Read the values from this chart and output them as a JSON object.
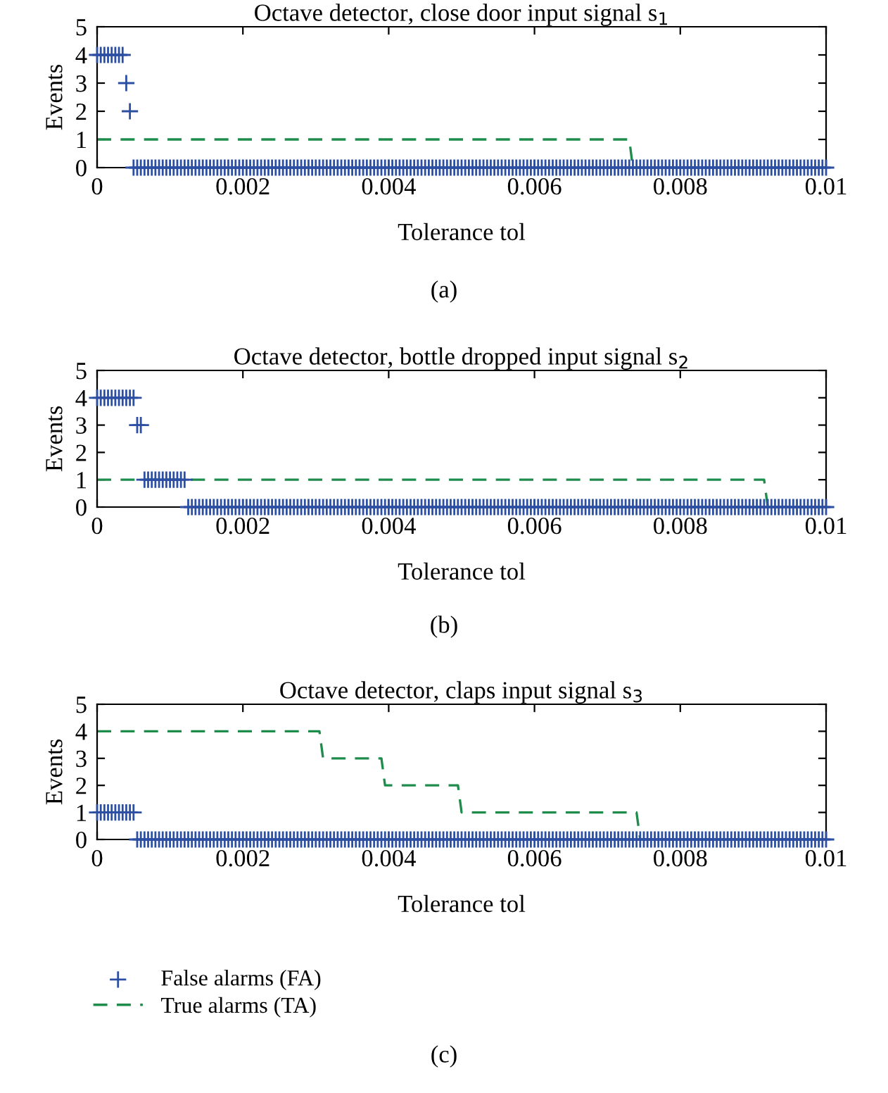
{
  "chart_data": [
    {
      "type": "scatter",
      "title": "Octave detector, close door input signal s$_{1}$",
      "xlabel": "Tolerance tol",
      "ylabel": "Events",
      "annotations": [
        "(a)"
      ],
      "xlim": [
        0,
        0.01
      ],
      "ylim": [
        0,
        5
      ],
      "xticks": [
        0,
        0.002,
        0.004,
        0.006,
        0.008,
        0.01
      ],
      "yticks": [
        0,
        1,
        2,
        3,
        4,
        5
      ],
      "x": [
        0,
        5e-05,
        0.0001,
        0.00015,
        0.0002,
        0.00025,
        0.0003,
        0.00035,
        0.0004,
        0.00045,
        0.0005,
        0.00055,
        0.0006,
        0.00065,
        0.0007,
        0.00075,
        0.0008,
        0.00085,
        0.0009,
        0.00095,
        0.001,
        0.00105,
        0.0011,
        0.00115,
        0.0012,
        0.00125,
        0.0013,
        0.00135,
        0.0014,
        0.00145,
        0.0015,
        0.00155,
        0.0016,
        0.00165,
        0.0017,
        0.00175,
        0.0018,
        0.00185,
        0.0019,
        0.00195,
        0.002,
        0.00205,
        0.0021,
        0.00215,
        0.0022,
        0.00225,
        0.0023,
        0.00235,
        0.0024,
        0.00245,
        0.0025,
        0.00255,
        0.0026,
        0.00265,
        0.0027,
        0.00275,
        0.0028,
        0.00285,
        0.0029,
        0.00295,
        0.003,
        0.00305,
        0.0031,
        0.00315,
        0.0032,
        0.00325,
        0.0033,
        0.00335,
        0.0034,
        0.00345,
        0.0035,
        0.00355,
        0.0036,
        0.00365,
        0.0037,
        0.00375,
        0.0038,
        0.00385,
        0.0039,
        0.00395,
        0.004,
        0.00405,
        0.0041,
        0.00415,
        0.0042,
        0.00425,
        0.0043,
        0.00435,
        0.0044,
        0.00445,
        0.0045,
        0.00455,
        0.0046,
        0.00465,
        0.0047,
        0.00475,
        0.0048,
        0.00485,
        0.0049,
        0.00495,
        0.005,
        0.00505,
        0.0051,
        0.00515,
        0.0052,
        0.00525,
        0.0053,
        0.00535,
        0.0054,
        0.00545,
        0.0055,
        0.00555,
        0.0056,
        0.00565,
        0.0057,
        0.00575,
        0.0058,
        0.00585,
        0.0059,
        0.00595,
        0.006,
        0.00605,
        0.0061,
        0.00615,
        0.0062,
        0.00625,
        0.0063,
        0.00635,
        0.0064,
        0.00645,
        0.0065,
        0.00655,
        0.0066,
        0.00665,
        0.0067,
        0.00675,
        0.0068,
        0.00685,
        0.0069,
        0.00695,
        0.007,
        0.00705,
        0.0071,
        0.00715,
        0.0072,
        0.00725,
        0.0073,
        0.00735,
        0.0074,
        0.00745,
        0.0075,
        0.00755,
        0.0076,
        0.00765,
        0.0077,
        0.00775,
        0.0078,
        0.00785,
        0.0079,
        0.00795,
        0.008,
        0.00805,
        0.0081,
        0.00815,
        0.0082,
        0.00825,
        0.0083,
        0.00835,
        0.0084,
        0.00845,
        0.0085,
        0.00855,
        0.0086,
        0.00865,
        0.0087,
        0.00875,
        0.0088,
        0.00885,
        0.0089,
        0.00895,
        0.009,
        0.00905,
        0.0091,
        0.00915,
        0.0092,
        0.00925,
        0.0093,
        0.00935,
        0.0094,
        0.00945,
        0.0095,
        0.00955,
        0.0096,
        0.00965,
        0.0097,
        0.00975,
        0.0098,
        0.00985,
        0.0099,
        0.00995,
        0.01
      ],
      "series": [
        {
          "marker": "cross",
          "color": "#2c4fa3",
          "values": [
            4,
            4,
            4,
            4,
            4,
            4,
            4,
            4,
            3,
            2,
            0,
            0,
            0,
            0,
            0,
            0,
            0,
            0,
            0,
            0,
            0,
            0,
            0,
            0,
            0,
            0,
            0,
            0,
            0,
            0,
            0,
            0,
            0,
            0,
            0,
            0,
            0,
            0,
            0,
            0,
            0,
            0,
            0,
            0,
            0,
            0,
            0,
            0,
            0,
            0,
            0,
            0,
            0,
            0,
            0,
            0,
            0,
            0,
            0,
            0,
            0,
            0,
            0,
            0,
            0,
            0,
            0,
            0,
            0,
            0,
            0,
            0,
            0,
            0,
            0,
            0,
            0,
            0,
            0,
            0,
            0,
            0,
            0,
            0,
            0,
            0,
            0,
            0,
            0,
            0,
            0,
            0,
            0,
            0,
            0,
            0,
            0,
            0,
            0,
            0,
            0,
            0,
            0,
            0,
            0,
            0,
            0,
            0,
            0,
            0,
            0,
            0,
            0,
            0,
            0,
            0,
            0,
            0,
            0,
            0,
            0,
            0,
            0,
            0,
            0,
            0,
            0,
            0,
            0,
            0,
            0,
            0,
            0,
            0,
            0,
            0,
            0,
            0,
            0,
            0,
            0,
            0,
            0,
            0,
            0,
            0,
            0,
            0,
            0,
            0,
            0,
            0,
            0,
            0,
            0,
            0,
            0,
            0,
            0,
            0,
            0,
            0,
            0,
            0,
            0,
            0,
            0,
            0,
            0,
            0,
            0,
            0,
            0,
            0,
            0,
            0,
            0,
            0,
            0,
            0,
            0,
            0,
            0,
            0,
            0,
            0,
            0,
            0,
            0,
            0,
            0,
            0,
            0,
            0,
            0,
            0,
            0,
            0,
            0,
            0,
            0
          ]
        },
        {
          "type": "line",
          "line_style": "dashed",
          "marker": "none",
          "color": "#1e8c4b",
          "x": [
            0,
            0.0073,
            0.00735,
            0.01
          ],
          "values": [
            1,
            1,
            0,
            0
          ]
        }
      ]
    },
    {
      "type": "scatter",
      "title": "Octave detector, bottle dropped input signal s$_{2}$",
      "xlabel": "Tolerance tol",
      "ylabel": "Events",
      "annotations": [
        "(b)"
      ],
      "xlim": [
        0,
        0.01
      ],
      "ylim": [
        0,
        5
      ],
      "xticks": [
        0,
        0.002,
        0.004,
        0.006,
        0.008,
        0.01
      ],
      "yticks": [
        0,
        1,
        2,
        3,
        4,
        5
      ],
      "x": [
        0,
        5e-05,
        0.0001,
        0.00015,
        0.0002,
        0.00025,
        0.0003,
        0.00035,
        0.0004,
        0.00045,
        0.0005,
        0.00055,
        0.0006,
        0.00065,
        0.0007,
        0.00075,
        0.0008,
        0.00085,
        0.0009,
        0.00095,
        0.001,
        0.00105,
        0.0011,
        0.00115,
        0.0012,
        0.00125,
        0.0013,
        0.00135,
        0.0014,
        0.00145,
        0.0015,
        0.00155,
        0.0016,
        0.00165,
        0.0017,
        0.00175,
        0.0018,
        0.00185,
        0.0019,
        0.00195,
        0.002,
        0.00205,
        0.0021,
        0.00215,
        0.0022,
        0.00225,
        0.0023,
        0.00235,
        0.0024,
        0.00245,
        0.0025,
        0.00255,
        0.0026,
        0.00265,
        0.0027,
        0.00275,
        0.0028,
        0.00285,
        0.0029,
        0.00295,
        0.003,
        0.00305,
        0.0031,
        0.00315,
        0.0032,
        0.00325,
        0.0033,
        0.00335,
        0.0034,
        0.00345,
        0.0035,
        0.00355,
        0.0036,
        0.00365,
        0.0037,
        0.00375,
        0.0038,
        0.00385,
        0.0039,
        0.00395,
        0.004,
        0.00405,
        0.0041,
        0.00415,
        0.0042,
        0.00425,
        0.0043,
        0.00435,
        0.0044,
        0.00445,
        0.0045,
        0.00455,
        0.0046,
        0.00465,
        0.0047,
        0.00475,
        0.0048,
        0.00485,
        0.0049,
        0.00495,
        0.005,
        0.00505,
        0.0051,
        0.00515,
        0.0052,
        0.00525,
        0.0053,
        0.00535,
        0.0054,
        0.00545,
        0.0055,
        0.00555,
        0.0056,
        0.00565,
        0.0057,
        0.00575,
        0.0058,
        0.00585,
        0.0059,
        0.00595,
        0.006,
        0.00605,
        0.0061,
        0.00615,
        0.0062,
        0.00625,
        0.0063,
        0.00635,
        0.0064,
        0.00645,
        0.0065,
        0.00655,
        0.0066,
        0.00665,
        0.0067,
        0.00675,
        0.0068,
        0.00685,
        0.0069,
        0.00695,
        0.007,
        0.00705,
        0.0071,
        0.00715,
        0.0072,
        0.00725,
        0.0073,
        0.00735,
        0.0074,
        0.00745,
        0.0075,
        0.00755,
        0.0076,
        0.00765,
        0.0077,
        0.00775,
        0.0078,
        0.00785,
        0.0079,
        0.00795,
        0.008,
        0.00805,
        0.0081,
        0.00815,
        0.0082,
        0.00825,
        0.0083,
        0.00835,
        0.0084,
        0.00845,
        0.0085,
        0.00855,
        0.0086,
        0.00865,
        0.0087,
        0.00875,
        0.0088,
        0.00885,
        0.0089,
        0.00895,
        0.009,
        0.00905,
        0.0091,
        0.00915,
        0.0092,
        0.00925,
        0.0093,
        0.00935,
        0.0094,
        0.00945,
        0.0095,
        0.00955,
        0.0096,
        0.00965,
        0.0097,
        0.00975,
        0.0098,
        0.00985,
        0.0099,
        0.00995,
        0.01
      ],
      "series": [
        {
          "marker": "cross",
          "color": "#2c4fa3",
          "values": [
            4,
            4,
            4,
            4,
            4,
            4,
            4,
            4,
            4,
            4,
            4,
            3,
            3,
            1,
            1,
            1,
            1,
            1,
            1,
            1,
            1,
            1,
            1,
            1,
            1,
            0,
            0,
            0,
            0,
            0,
            0,
            0,
            0,
            0,
            0,
            0,
            0,
            0,
            0,
            0,
            0,
            0,
            0,
            0,
            0,
            0,
            0,
            0,
            0,
            0,
            0,
            0,
            0,
            0,
            0,
            0,
            0,
            0,
            0,
            0,
            0,
            0,
            0,
            0,
            0,
            0,
            0,
            0,
            0,
            0,
            0,
            0,
            0,
            0,
            0,
            0,
            0,
            0,
            0,
            0,
            0,
            0,
            0,
            0,
            0,
            0,
            0,
            0,
            0,
            0,
            0,
            0,
            0,
            0,
            0,
            0,
            0,
            0,
            0,
            0,
            0,
            0,
            0,
            0,
            0,
            0,
            0,
            0,
            0,
            0,
            0,
            0,
            0,
            0,
            0,
            0,
            0,
            0,
            0,
            0,
            0,
            0,
            0,
            0,
            0,
            0,
            0,
            0,
            0,
            0,
            0,
            0,
            0,
            0,
            0,
            0,
            0,
            0,
            0,
            0,
            0,
            0,
            0,
            0,
            0,
            0,
            0,
            0,
            0,
            0,
            0,
            0,
            0,
            0,
            0,
            0,
            0,
            0,
            0,
            0,
            0,
            0,
            0,
            0,
            0,
            0,
            0,
            0,
            0,
            0,
            0,
            0,
            0,
            0,
            0,
            0,
            0,
            0,
            0,
            0,
            0,
            0,
            0,
            0,
            0,
            0,
            0,
            0,
            0,
            0,
            0,
            0,
            0,
            0,
            0,
            0,
            0,
            0,
            0,
            0,
            0
          ]
        },
        {
          "type": "line",
          "line_style": "dashed",
          "marker": "none",
          "color": "#1e8c4b",
          "x": [
            0,
            0.00915,
            0.0092,
            0.01
          ],
          "values": [
            1,
            1,
            0,
            0
          ]
        }
      ]
    },
    {
      "type": "scatter",
      "title": "Octave detector, claps input signal s$_{3}$",
      "xlabel": "Tolerance tol",
      "ylabel": "Events",
      "annotations": [
        "(c)"
      ],
      "xlim": [
        0,
        0.01
      ],
      "ylim": [
        0,
        5
      ],
      "xticks": [
        0,
        0.002,
        0.004,
        0.006,
        0.008,
        0.01
      ],
      "yticks": [
        0,
        1,
        2,
        3,
        4,
        5
      ],
      "legend": "bottom",
      "x": [
        0,
        5e-05,
        0.0001,
        0.00015,
        0.0002,
        0.00025,
        0.0003,
        0.00035,
        0.0004,
        0.00045,
        0.0005,
        0.00055,
        0.0006,
        0.00065,
        0.0007,
        0.00075,
        0.0008,
        0.00085,
        0.0009,
        0.00095,
        0.001,
        0.00105,
        0.0011,
        0.00115,
        0.0012,
        0.00125,
        0.0013,
        0.00135,
        0.0014,
        0.00145,
        0.0015,
        0.00155,
        0.0016,
        0.00165,
        0.0017,
        0.00175,
        0.0018,
        0.00185,
        0.0019,
        0.00195,
        0.002,
        0.00205,
        0.0021,
        0.00215,
        0.0022,
        0.00225,
        0.0023,
        0.00235,
        0.0024,
        0.00245,
        0.0025,
        0.00255,
        0.0026,
        0.00265,
        0.0027,
        0.00275,
        0.0028,
        0.00285,
        0.0029,
        0.00295,
        0.003,
        0.00305,
        0.0031,
        0.00315,
        0.0032,
        0.00325,
        0.0033,
        0.00335,
        0.0034,
        0.00345,
        0.0035,
        0.00355,
        0.0036,
        0.00365,
        0.0037,
        0.00375,
        0.0038,
        0.00385,
        0.0039,
        0.00395,
        0.004,
        0.00405,
        0.0041,
        0.00415,
        0.0042,
        0.00425,
        0.0043,
        0.00435,
        0.0044,
        0.00445,
        0.0045,
        0.00455,
        0.0046,
        0.00465,
        0.0047,
        0.00475,
        0.0048,
        0.00485,
        0.0049,
        0.00495,
        0.005,
        0.00505,
        0.0051,
        0.00515,
        0.0052,
        0.00525,
        0.0053,
        0.00535,
        0.0054,
        0.00545,
        0.0055,
        0.00555,
        0.0056,
        0.00565,
        0.0057,
        0.00575,
        0.0058,
        0.00585,
        0.0059,
        0.00595,
        0.006,
        0.00605,
        0.0061,
        0.00615,
        0.0062,
        0.00625,
        0.0063,
        0.00635,
        0.0064,
        0.00645,
        0.0065,
        0.00655,
        0.0066,
        0.00665,
        0.0067,
        0.00675,
        0.0068,
        0.00685,
        0.0069,
        0.00695,
        0.007,
        0.00705,
        0.0071,
        0.00715,
        0.0072,
        0.00725,
        0.0073,
        0.00735,
        0.0074,
        0.00745,
        0.0075,
        0.00755,
        0.0076,
        0.00765,
        0.0077,
        0.00775,
        0.0078,
        0.00785,
        0.0079,
        0.00795,
        0.008,
        0.00805,
        0.0081,
        0.00815,
        0.0082,
        0.00825,
        0.0083,
        0.00835,
        0.0084,
        0.00845,
        0.0085,
        0.00855,
        0.0086,
        0.00865,
        0.0087,
        0.00875,
        0.0088,
        0.00885,
        0.0089,
        0.00895,
        0.009,
        0.00905,
        0.0091,
        0.00915,
        0.0092,
        0.00925,
        0.0093,
        0.00935,
        0.0094,
        0.00945,
        0.0095,
        0.00955,
        0.0096,
        0.00965,
        0.0097,
        0.00975,
        0.0098,
        0.00985,
        0.0099,
        0.00995,
        0.01
      ],
      "series": [
        {
          "name": "False alarms (FA)",
          "marker": "cross",
          "color": "#2c4fa3",
          "values": [
            1,
            1,
            1,
            1,
            1,
            1,
            1,
            1,
            1,
            1,
            1,
            0,
            0,
            0,
            0,
            0,
            0,
            0,
            0,
            0,
            0,
            0,
            0,
            0,
            0,
            0,
            0,
            0,
            0,
            0,
            0,
            0,
            0,
            0,
            0,
            0,
            0,
            0,
            0,
            0,
            0,
            0,
            0,
            0,
            0,
            0,
            0,
            0,
            0,
            0,
            0,
            0,
            0,
            0,
            0,
            0,
            0,
            0,
            0,
            0,
            0,
            0,
            0,
            0,
            0,
            0,
            0,
            0,
            0,
            0,
            0,
            0,
            0,
            0,
            0,
            0,
            0,
            0,
            0,
            0,
            0,
            0,
            0,
            0,
            0,
            0,
            0,
            0,
            0,
            0,
            0,
            0,
            0,
            0,
            0,
            0,
            0,
            0,
            0,
            0,
            0,
            0,
            0,
            0,
            0,
            0,
            0,
            0,
            0,
            0,
            0,
            0,
            0,
            0,
            0,
            0,
            0,
            0,
            0,
            0,
            0,
            0,
            0,
            0,
            0,
            0,
            0,
            0,
            0,
            0,
            0,
            0,
            0,
            0,
            0,
            0,
            0,
            0,
            0,
            0,
            0,
            0,
            0,
            0,
            0,
            0,
            0,
            0,
            0,
            0,
            0,
            0,
            0,
            0,
            0,
            0,
            0,
            0,
            0,
            0,
            0,
            0,
            0,
            0,
            0,
            0,
            0,
            0,
            0,
            0,
            0,
            0,
            0,
            0,
            0,
            0,
            0,
            0,
            0,
            0,
            0,
            0,
            0,
            0,
            0,
            0,
            0,
            0,
            0,
            0,
            0,
            0,
            0,
            0,
            0,
            0,
            0,
            0,
            0,
            0,
            0
          ]
        },
        {
          "name": "True alarms (TA)",
          "type": "line",
          "line_style": "dashed",
          "marker": "none",
          "color": "#1e8c4b",
          "x": [
            0,
            0.00305,
            0.0031,
            0.0039,
            0.00395,
            0.00495,
            0.005,
            0.0074,
            0.00745,
            0.01
          ],
          "values": [
            4,
            4,
            3,
            3,
            2,
            2,
            1,
            1,
            0,
            0
          ]
        }
      ]
    }
  ]
}
